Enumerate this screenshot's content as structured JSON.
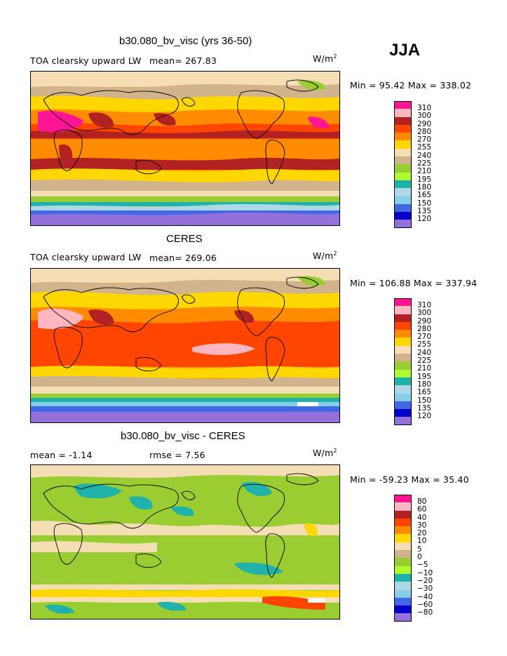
{
  "season": "JJA",
  "panels": [
    {
      "id": "model",
      "title": "b30.080_bv_visc (yrs 36-50)",
      "field": "TOA clearsky upward LW",
      "stat1": "mean= 267.83",
      "stat2": "",
      "units": "W/m",
      "units_sup": "2",
      "minmax": "Min =  95.42 Max = 338.02",
      "legend_ticks": [
        "310",
        "300",
        "290",
        "280",
        "270",
        "255",
        "240",
        "225",
        "210",
        "195",
        "180",
        "165",
        "150",
        "135",
        "120"
      ]
    },
    {
      "id": "obs",
      "title": "CERES",
      "field": "TOA clearsky upward LW",
      "stat1": "mean= 269.06",
      "stat2": "",
      "units": "W/m",
      "units_sup": "2",
      "minmax": "Min = 106.88 Max = 337.94",
      "legend_ticks": [
        "310",
        "300",
        "290",
        "280",
        "270",
        "255",
        "240",
        "225",
        "210",
        "195",
        "180",
        "165",
        "150",
        "135",
        "120"
      ]
    },
    {
      "id": "diff",
      "title": "b30.080_bv_visc - CERES",
      "field": "",
      "stat1": "mean =   -1.14",
      "stat2": "rmse =    7.56",
      "units": "W/m",
      "units_sup": "2",
      "minmax": "Min = -59.23 Max =  35.40",
      "legend_ticks": [
        "80",
        "60",
        "40",
        "30",
        "20",
        "10",
        "5",
        "0",
        "−5",
        "−10",
        "−20",
        "−30",
        "−40",
        "−60",
        "−80"
      ]
    }
  ],
  "palette_colors": [
    "#ff1493",
    "#ffb6c1",
    "#b22222",
    "#ff4500",
    "#ff8c00",
    "#ffd700",
    "#f5deb3",
    "#d2b48c",
    "#9acd32",
    "#adff2f",
    "#20b2aa",
    "#add8e6",
    "#87ceeb",
    "#4169e1",
    "#0000cd",
    "#9370db"
  ]
}
